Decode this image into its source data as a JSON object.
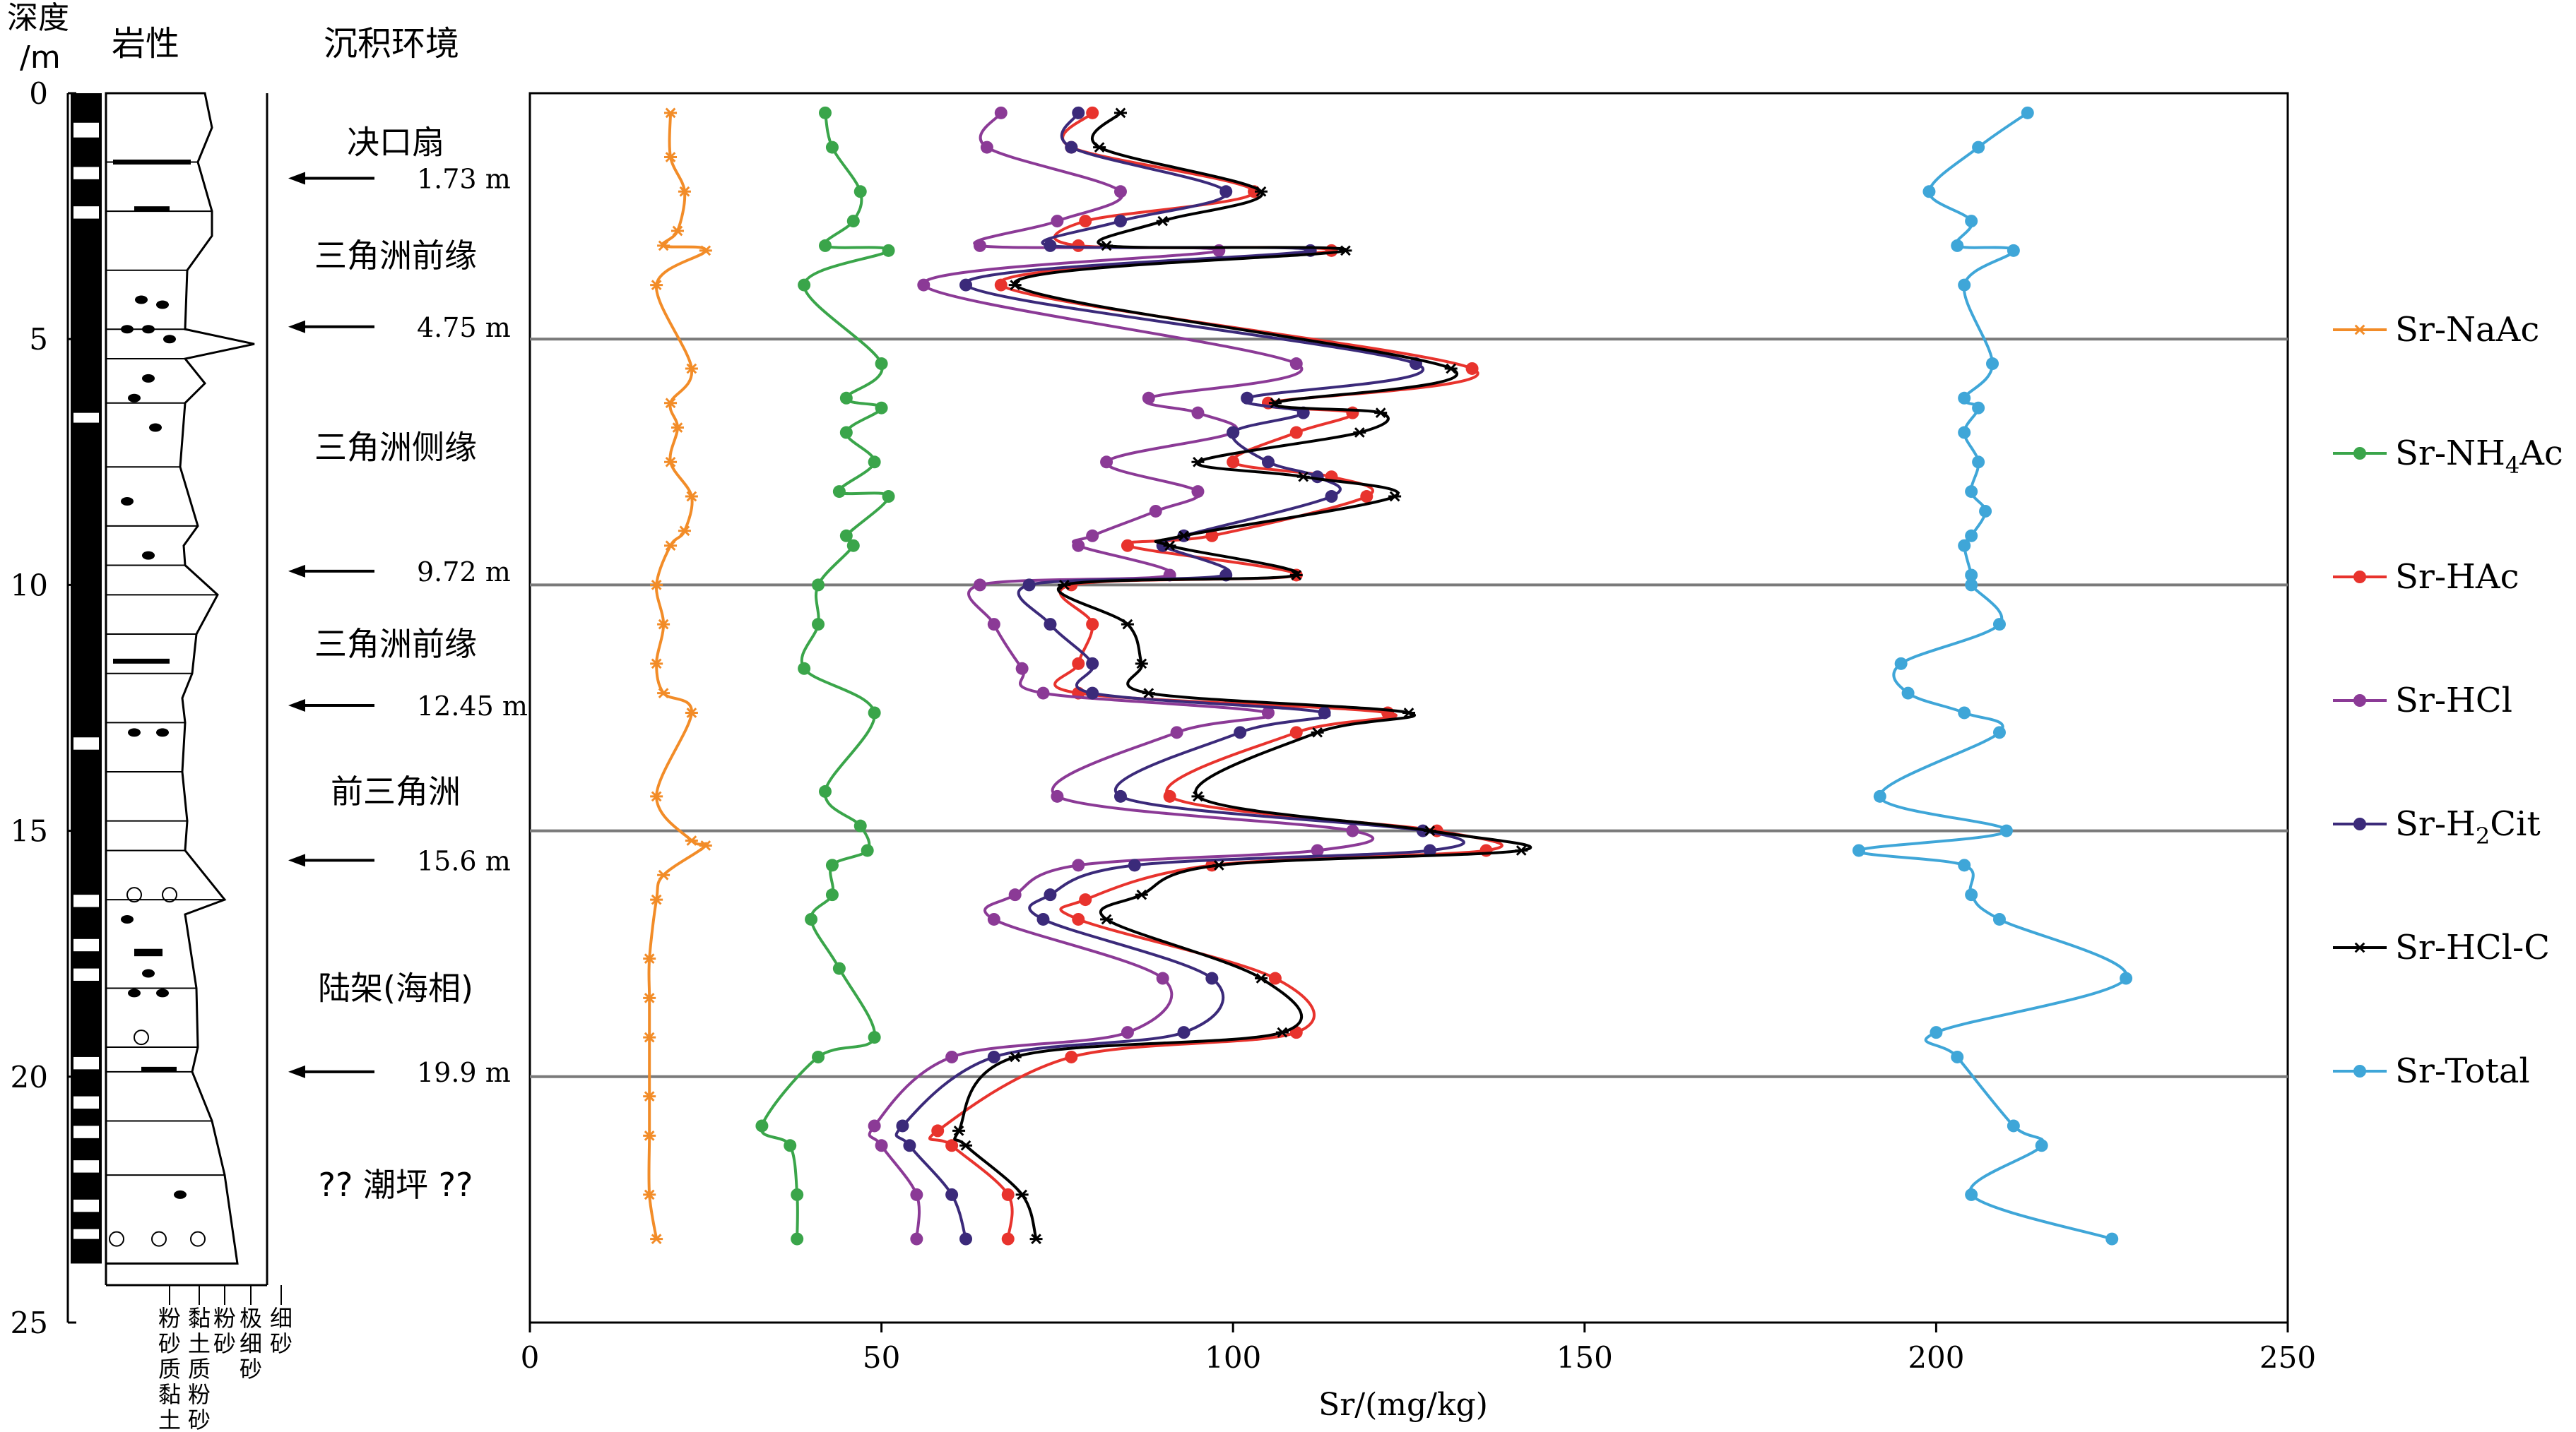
{
  "headers": {
    "depth": "深度",
    "depth_unit": "/m",
    "lithology": "岩性",
    "environment": "沉积环境"
  },
  "grain_size_labels": [
    "粉砂质黏土",
    "黏土质粉砂",
    "粉砂",
    "极细砂",
    "细砂"
  ],
  "environments": [
    {
      "name": "决口扇",
      "depth": 1.0
    },
    {
      "name": "三角洲前缘",
      "depth": 3.3
    },
    {
      "name": "三角洲侧缘",
      "depth": 7.2
    },
    {
      "name": "三角洲前缘",
      "depth": 11.2
    },
    {
      "name": "前三角洲",
      "depth": 14.2
    },
    {
      "name": "陆架(海相)",
      "depth": 18.2
    },
    {
      "name": "?? 潮坪 ??",
      "depth": 22.2
    }
  ],
  "boundaries": [
    {
      "label": "1.73 m",
      "depth": 1.73
    },
    {
      "label": "4.75 m",
      "depth": 4.75
    },
    {
      "label": "9.72 m",
      "depth": 9.72
    },
    {
      "label": "12.45 m",
      "depth": 12.45
    },
    {
      "label": "15.6 m",
      "depth": 15.6
    },
    {
      "label": "19.9 m",
      "depth": 19.9
    }
  ],
  "chart_data": {
    "type": "line",
    "xlabel": "Sr/(mg/kg)",
    "ylabel": "深度/m",
    "xlim": [
      0,
      250
    ],
    "ylim": [
      0,
      25
    ],
    "x_ticks": [
      0,
      50,
      100,
      150,
      200,
      250
    ],
    "y_ticks": [
      0,
      5,
      10,
      15,
      20,
      25
    ],
    "reference_lines": [
      5,
      10,
      15,
      20
    ],
    "series": [
      {
        "name": "Sr-NaAc",
        "legend": [
          "Sr-NaAc"
        ],
        "color": "#f28c28",
        "marker": "star",
        "points": [
          [
            20,
            0.4
          ],
          [
            20,
            1.3
          ],
          [
            22,
            2.0
          ],
          [
            21,
            2.8
          ],
          [
            19,
            3.1
          ],
          [
            25,
            3.2
          ],
          [
            18,
            3.9
          ],
          [
            23,
            5.6
          ],
          [
            20,
            6.3
          ],
          [
            21,
            6.8
          ],
          [
            20,
            7.5
          ],
          [
            23,
            8.2
          ],
          [
            22,
            8.9
          ],
          [
            20,
            9.2
          ],
          [
            18,
            10.0
          ],
          [
            19,
            10.8
          ],
          [
            18,
            11.6
          ],
          [
            19,
            12.2
          ],
          [
            23,
            12.6
          ],
          [
            18,
            14.3
          ],
          [
            23,
            15.2
          ],
          [
            25,
            15.3
          ],
          [
            19,
            15.9
          ],
          [
            18,
            16.4
          ],
          [
            17,
            17.6
          ],
          [
            17,
            18.4
          ],
          [
            17,
            19.2
          ],
          [
            17,
            20.4
          ],
          [
            17,
            21.2
          ],
          [
            17,
            22.4
          ],
          [
            18,
            23.3
          ]
        ]
      },
      {
        "name": "Sr-NH4Ac",
        "legend": [
          "Sr-NH",
          "4",
          "Ac"
        ],
        "color": "#3aa54a",
        "marker": "dot",
        "points": [
          [
            42,
            0.4
          ],
          [
            43,
            1.1
          ],
          [
            47,
            2.0
          ],
          [
            46,
            2.6
          ],
          [
            42,
            3.1
          ],
          [
            51,
            3.2
          ],
          [
            39,
            3.9
          ],
          [
            50,
            5.5
          ],
          [
            45,
            6.2
          ],
          [
            50,
            6.4
          ],
          [
            45,
            6.9
          ],
          [
            49,
            7.5
          ],
          [
            44,
            8.1
          ],
          [
            51,
            8.2
          ],
          [
            45,
            9.0
          ],
          [
            46,
            9.2
          ],
          [
            41,
            10.0
          ],
          [
            41,
            10.8
          ],
          [
            39,
            11.7
          ],
          [
            49,
            12.6
          ],
          [
            42,
            14.2
          ],
          [
            47,
            14.9
          ],
          [
            48,
            15.4
          ],
          [
            43,
            15.7
          ],
          [
            43,
            16.3
          ],
          [
            40,
            16.8
          ],
          [
            44,
            17.8
          ],
          [
            49,
            19.2
          ],
          [
            41,
            19.6
          ],
          [
            33,
            21.0
          ],
          [
            37,
            21.4
          ],
          [
            38,
            22.4
          ],
          [
            38,
            23.3
          ]
        ]
      },
      {
        "name": "Sr-HAc",
        "legend": [
          "Sr-HAc"
        ],
        "color": "#e8332d",
        "marker": "dot",
        "points": [
          [
            80,
            0.4
          ],
          [
            77,
            1.1
          ],
          [
            103,
            2.0
          ],
          [
            79,
            2.6
          ],
          [
            78,
            3.1
          ],
          [
            114,
            3.2
          ],
          [
            67,
            3.9
          ],
          [
            134,
            5.6
          ],
          [
            105,
            6.3
          ],
          [
            117,
            6.5
          ],
          [
            109,
            6.9
          ],
          [
            100,
            7.5
          ],
          [
            114,
            7.8
          ],
          [
            119,
            8.2
          ],
          [
            97,
            9.0
          ],
          [
            85,
            9.2
          ],
          [
            109,
            9.8
          ],
          [
            77,
            10.0
          ],
          [
            80,
            10.8
          ],
          [
            78,
            11.6
          ],
          [
            78,
            12.2
          ],
          [
            122,
            12.6
          ],
          [
            109,
            13.0
          ],
          [
            91,
            14.3
          ],
          [
            129,
            15.0
          ],
          [
            136,
            15.4
          ],
          [
            97,
            15.7
          ],
          [
            79,
            16.4
          ],
          [
            78,
            16.8
          ],
          [
            106,
            18.0
          ],
          [
            109,
            19.1
          ],
          [
            77,
            19.6
          ],
          [
            58,
            21.1
          ],
          [
            60,
            21.4
          ],
          [
            68,
            22.4
          ],
          [
            68,
            23.3
          ]
        ]
      },
      {
        "name": "Sr-HCl",
        "legend": [
          "Sr-HCl"
        ],
        "color": "#8b3a96",
        "marker": "dot",
        "points": [
          [
            67,
            0.4
          ],
          [
            65,
            1.1
          ],
          [
            84,
            2.0
          ],
          [
            75,
            2.6
          ],
          [
            64,
            3.1
          ],
          [
            98,
            3.2
          ],
          [
            56,
            3.9
          ],
          [
            109,
            5.5
          ],
          [
            88,
            6.2
          ],
          [
            95,
            6.5
          ],
          [
            100,
            6.9
          ],
          [
            82,
            7.5
          ],
          [
            95,
            8.1
          ],
          [
            89,
            8.5
          ],
          [
            80,
            9.0
          ],
          [
            78,
            9.2
          ],
          [
            91,
            9.8
          ],
          [
            64,
            10.0
          ],
          [
            66,
            10.8
          ],
          [
            70,
            11.7
          ],
          [
            73,
            12.2
          ],
          [
            105,
            12.6
          ],
          [
            92,
            13.0
          ],
          [
            75,
            14.3
          ],
          [
            117,
            15.0
          ],
          [
            112,
            15.4
          ],
          [
            78,
            15.7
          ],
          [
            69,
            16.3
          ],
          [
            66,
            16.8
          ],
          [
            90,
            18.0
          ],
          [
            85,
            19.1
          ],
          [
            60,
            19.6
          ],
          [
            49,
            21.0
          ],
          [
            50,
            21.4
          ],
          [
            55,
            22.4
          ],
          [
            55,
            23.3
          ]
        ]
      },
      {
        "name": "Sr-H2Cit",
        "legend": [
          "Sr-H",
          "2",
          "Cit"
        ],
        "color": "#3b2a7a",
        "marker": "dot",
        "points": [
          [
            78,
            0.4
          ],
          [
            77,
            1.1
          ],
          [
            99,
            2.0
          ],
          [
            84,
            2.6
          ],
          [
            74,
            3.1
          ],
          [
            111,
            3.2
          ],
          [
            62,
            3.9
          ],
          [
            126,
            5.5
          ],
          [
            102,
            6.2
          ],
          [
            110,
            6.5
          ],
          [
            100,
            6.9
          ],
          [
            105,
            7.5
          ],
          [
            112,
            7.8
          ],
          [
            114,
            8.2
          ],
          [
            93,
            9.0
          ],
          [
            90,
            9.2
          ],
          [
            99,
            9.8
          ],
          [
            71,
            10.0
          ],
          [
            74,
            10.8
          ],
          [
            80,
            11.6
          ],
          [
            80,
            12.2
          ],
          [
            113,
            12.6
          ],
          [
            101,
            13.0
          ],
          [
            84,
            14.3
          ],
          [
            127,
            15.0
          ],
          [
            128,
            15.4
          ],
          [
            86,
            15.7
          ],
          [
            74,
            16.3
          ],
          [
            73,
            16.8
          ],
          [
            97,
            18.0
          ],
          [
            93,
            19.1
          ],
          [
            66,
            19.6
          ],
          [
            53,
            21.0
          ],
          [
            54,
            21.4
          ],
          [
            60,
            22.4
          ],
          [
            62,
            23.3
          ]
        ]
      },
      {
        "name": "Sr-HCl-C",
        "legend": [
          "Sr-HCl-C"
        ],
        "color": "#000000",
        "marker": "star",
        "points": [
          [
            84,
            0.4
          ],
          [
            81,
            1.1
          ],
          [
            104,
            2.0
          ],
          [
            90,
            2.6
          ],
          [
            82,
            3.1
          ],
          [
            116,
            3.2
          ],
          [
            69,
            3.9
          ],
          [
            131,
            5.6
          ],
          [
            106,
            6.3
          ],
          [
            121,
            6.5
          ],
          [
            118,
            6.9
          ],
          [
            95,
            7.5
          ],
          [
            110,
            7.8
          ],
          [
            123,
            8.2
          ],
          [
            93,
            9.0
          ],
          [
            91,
            9.2
          ],
          [
            109,
            9.8
          ],
          [
            76,
            10.0
          ],
          [
            85,
            10.8
          ],
          [
            87,
            11.6
          ],
          [
            88,
            12.2
          ],
          [
            125,
            12.6
          ],
          [
            112,
            13.0
          ],
          [
            95,
            14.3
          ],
          [
            128,
            15.0
          ],
          [
            141,
            15.4
          ],
          [
            98,
            15.7
          ],
          [
            87,
            16.3
          ],
          [
            82,
            16.8
          ],
          [
            104,
            18.0
          ],
          [
            107,
            19.1
          ],
          [
            69,
            19.6
          ],
          [
            61,
            21.1
          ],
          [
            62,
            21.4
          ],
          [
            70,
            22.4
          ],
          [
            72,
            23.3
          ]
        ]
      },
      {
        "name": "Sr-Total",
        "legend": [
          "Sr-Total"
        ],
        "color": "#3fa6d8",
        "marker": "dot",
        "points": [
          [
            213,
            0.4
          ],
          [
            206,
            1.1
          ],
          [
            199,
            2.0
          ],
          [
            205,
            2.6
          ],
          [
            203,
            3.1
          ],
          [
            211,
            3.2
          ],
          [
            204,
            3.9
          ],
          [
            208,
            5.5
          ],
          [
            204,
            6.2
          ],
          [
            206,
            6.4
          ],
          [
            204,
            6.9
          ],
          [
            206,
            7.5
          ],
          [
            205,
            8.1
          ],
          [
            207,
            8.5
          ],
          [
            205,
            9.0
          ],
          [
            204,
            9.2
          ],
          [
            205,
            9.8
          ],
          [
            205,
            10.0
          ],
          [
            209,
            10.8
          ],
          [
            195,
            11.6
          ],
          [
            196,
            12.2
          ],
          [
            204,
            12.6
          ],
          [
            209,
            13.0
          ],
          [
            192,
            14.3
          ],
          [
            210,
            15.0
          ],
          [
            189,
            15.4
          ],
          [
            204,
            15.7
          ],
          [
            205,
            16.3
          ],
          [
            209,
            16.8
          ],
          [
            227,
            18.0
          ],
          [
            200,
            19.1
          ],
          [
            203,
            19.6
          ],
          [
            211,
            21.0
          ],
          [
            215,
            21.4
          ],
          [
            205,
            22.4
          ],
          [
            225,
            23.3
          ]
        ]
      }
    ]
  }
}
